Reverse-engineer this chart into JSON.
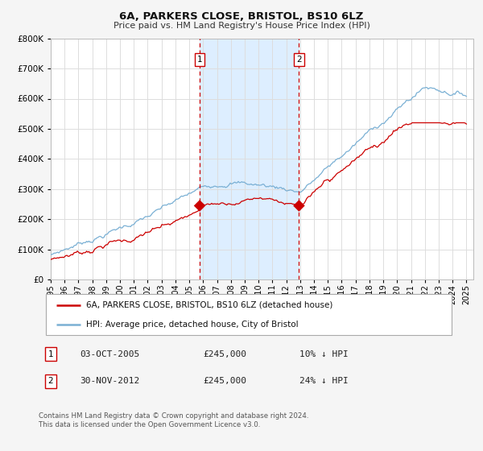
{
  "title": "6A, PARKERS CLOSE, BRISTOL, BS10 6LZ",
  "subtitle": "Price paid vs. HM Land Registry's House Price Index (HPI)",
  "ylim": [
    0,
    800000
  ],
  "yticks": [
    0,
    100000,
    200000,
    300000,
    400000,
    500000,
    600000,
    700000,
    800000
  ],
  "xlim_start": 1995.0,
  "xlim_end": 2025.5,
  "sale1_date": 2005.75,
  "sale1_price": 245000,
  "sale1_label": "1",
  "sale2_date": 2012.917,
  "sale2_price": 245000,
  "sale2_label": "2",
  "shaded_region_color": "#ddeeff",
  "vline_color": "#cc0000",
  "hpi_line_color": "#7ab0d4",
  "price_line_color": "#cc0000",
  "legend1_label": "6A, PARKERS CLOSE, BRISTOL, BS10 6LZ (detached house)",
  "legend2_label": "HPI: Average price, detached house, City of Bristol",
  "note1_num": "1",
  "note1_date": "03-OCT-2005",
  "note1_price": "£245,000",
  "note1_hpi": "10% ↓ HPI",
  "note2_num": "2",
  "note2_date": "30-NOV-2012",
  "note2_price": "£245,000",
  "note2_hpi": "24% ↓ HPI",
  "footnote": "Contains HM Land Registry data © Crown copyright and database right 2024.\nThis data is licensed under the Open Government Licence v3.0.",
  "background_color": "#f5f5f5",
  "plot_bg_color": "#ffffff"
}
